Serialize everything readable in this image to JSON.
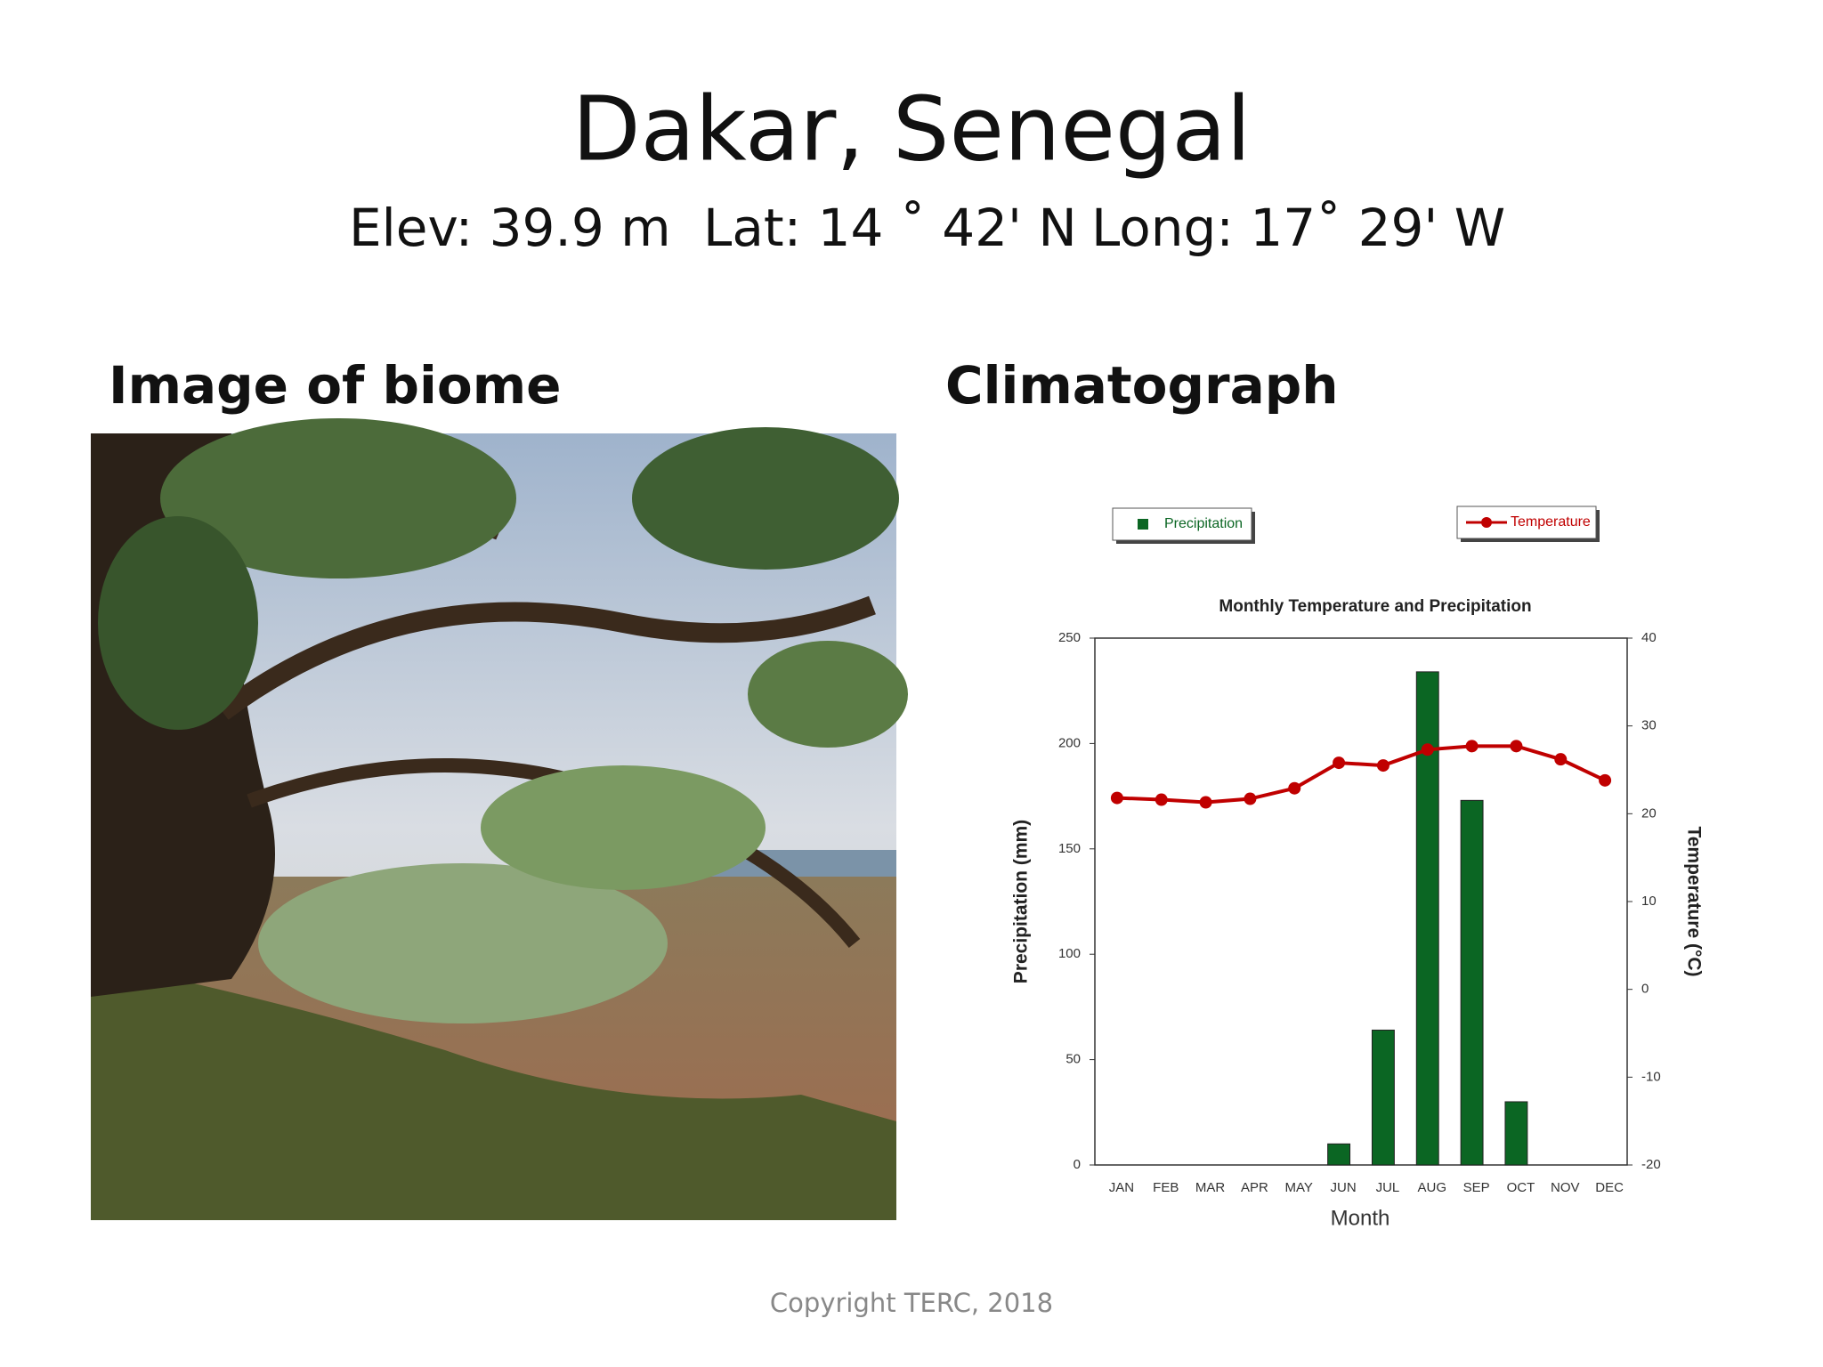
{
  "title": "Dakar, Senegal",
  "subtitle": [
    "Elev: 39.9 m",
    "Lat: 14 ˚ 42' N",
    "Long: 17˚ 29' W"
  ],
  "image_heading": "Image of biome",
  "chart_heading": "Climatograph",
  "footer": "Copyright TERC, 2018",
  "chart_data": {
    "type": "bar_line",
    "title": "Monthly Temperature and Precipitation",
    "x_label": "Month",
    "y_label": "Precipitation (mm)",
    "y2_label": "Temperature (°C)",
    "categories": [
      "JAN",
      "FEB",
      "MAR",
      "APR",
      "MAY",
      "JUN",
      "JUL",
      "AUG",
      "SEP",
      "OCT",
      "NOV",
      "DEC"
    ],
    "series": [
      {
        "name": "Precipitation",
        "type": "bar",
        "color": "#0b6623",
        "values": [
          0,
          0,
          0,
          0,
          0,
          10,
          64,
          234,
          173,
          30,
          0,
          0
        ]
      },
      {
        "name": "Temperature",
        "type": "line",
        "axis": "y2",
        "color": "#c00000",
        "values": [
          21.8,
          21.6,
          21.3,
          21.7,
          22.9,
          25.8,
          25.5,
          27.3,
          27.7,
          27.7,
          26.2,
          23.8
        ]
      }
    ],
    "ylim": [
      0,
      250
    ],
    "yticks": [
      0,
      50,
      100,
      150,
      200,
      250
    ],
    "y2lim": [
      -20,
      40
    ],
    "y2ticks": [
      -20,
      -10,
      0,
      10,
      20,
      30,
      40
    ]
  }
}
